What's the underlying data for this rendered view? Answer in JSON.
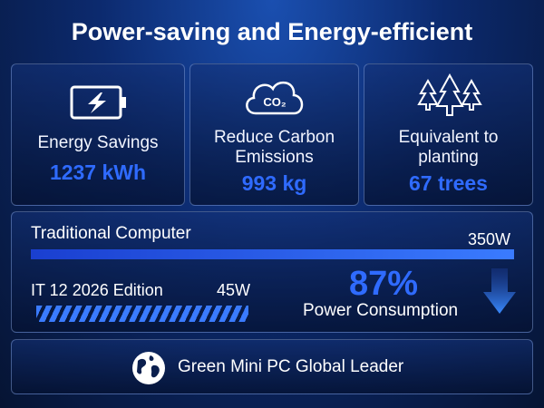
{
  "header": {
    "title": "Power-saving and Energy-efficient"
  },
  "cards": [
    {
      "label": "Energy Savings",
      "value": "1237 kWh"
    },
    {
      "label": "Reduce Carbon Emissions",
      "value": "993 kg",
      "icon_text": "CO₂"
    },
    {
      "label": "Equivalent to planting",
      "value": "67 trees"
    }
  ],
  "comparison": {
    "traditional": {
      "label": "Traditional Computer",
      "power": "350W"
    },
    "product": {
      "label": "IT 12 2026 Edition",
      "power": "45W"
    },
    "reduction": {
      "value": "87%",
      "label": "Power Consumption"
    }
  },
  "footer": {
    "text": "Green Mini PC Global Leader"
  }
}
